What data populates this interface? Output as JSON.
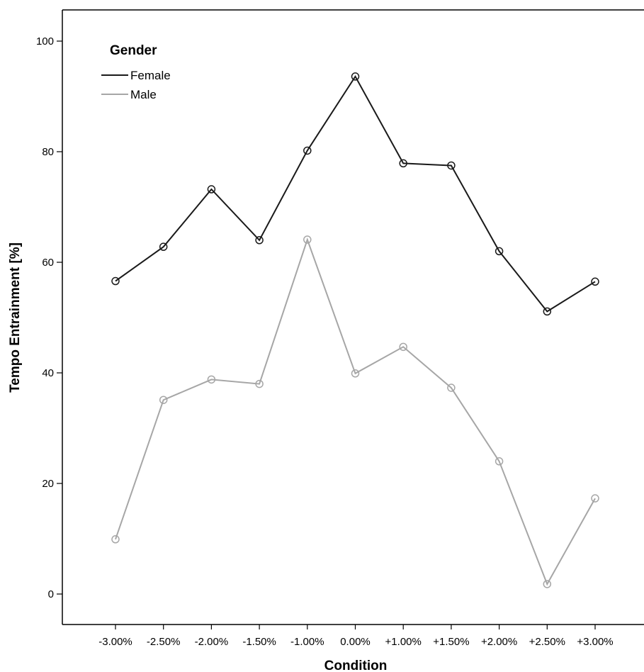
{
  "chart_data": {
    "type": "line",
    "xlabel": "Condition",
    "ylabel": "Tempo Entrainment [%]",
    "categories": [
      "-3.00%",
      "-2.50%",
      "-2.00%",
      "-1.50%",
      "-1.00%",
      "0.00%",
      "+1.00%",
      "+1.50%",
      "+2.00%",
      "+2.50%",
      "+3.00%"
    ],
    "ylim": [
      -5,
      105
    ],
    "yticks": [
      0,
      20,
      40,
      60,
      80,
      100
    ],
    "grid": false,
    "legend": {
      "title": "Gender",
      "placement": "top-left"
    },
    "series": [
      {
        "name": "Female",
        "color": "#1a1a1a",
        "values": [
          56.6,
          62.8,
          73.2,
          64.0,
          80.2,
          93.6,
          77.9,
          77.5,
          62.0,
          51.1,
          56.5
        ]
      },
      {
        "name": "Male",
        "color": "#a6a6a6",
        "values": [
          9.9,
          35.1,
          38.8,
          38.0,
          64.1,
          39.9,
          44.7,
          37.3,
          24.0,
          1.8,
          17.3
        ]
      }
    ]
  }
}
